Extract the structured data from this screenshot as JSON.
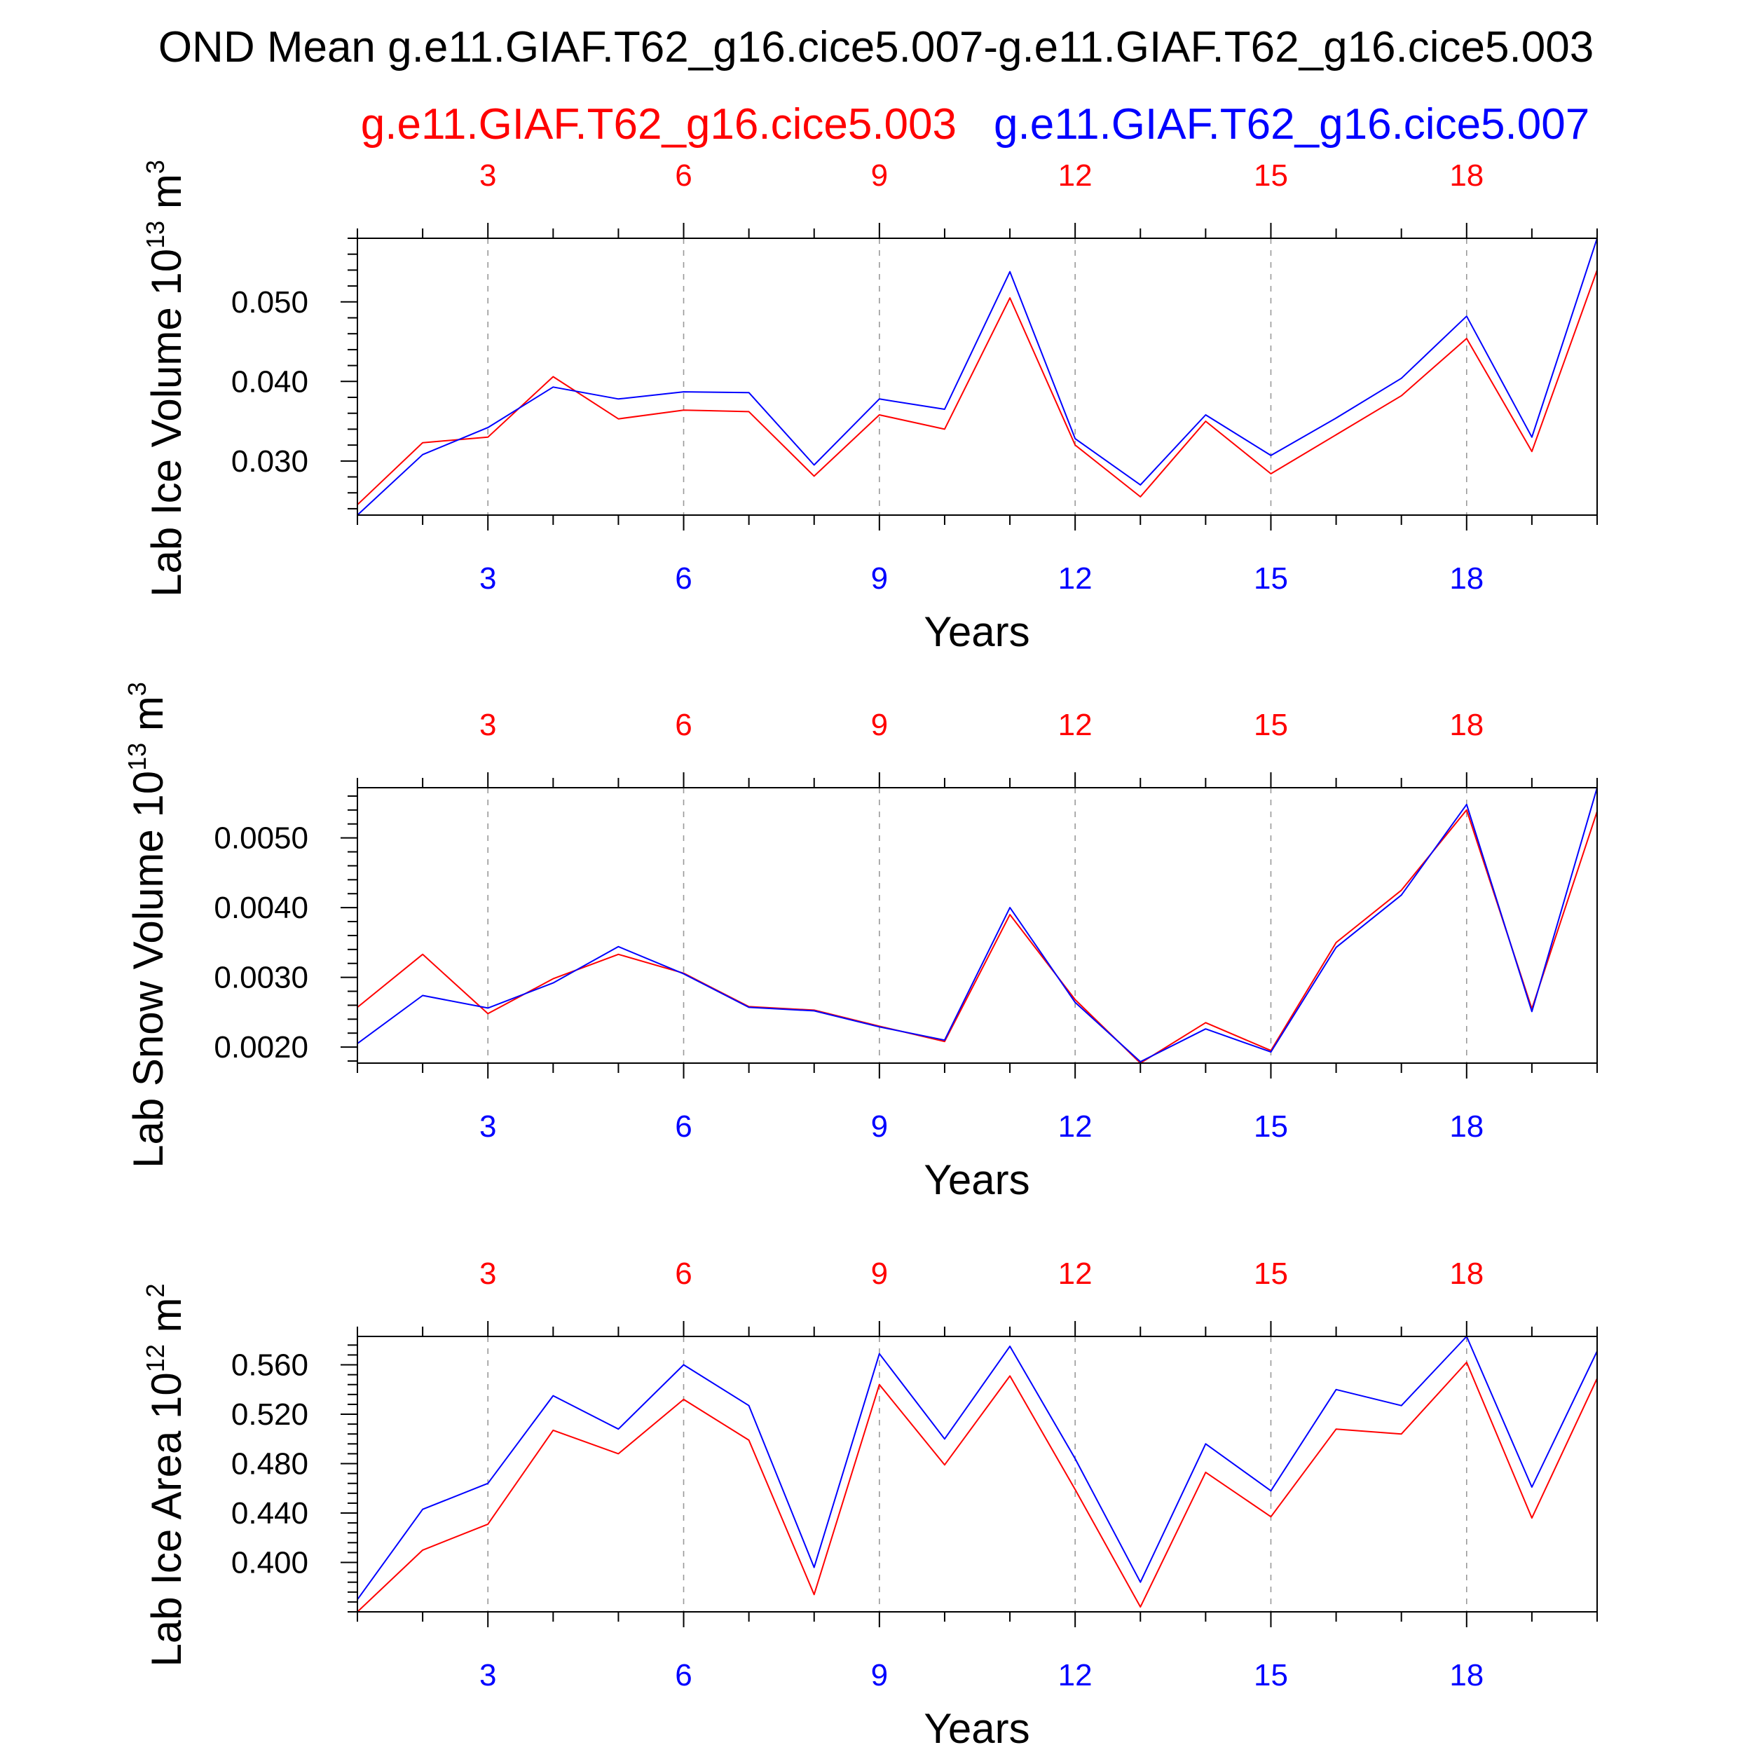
{
  "figure": {
    "title": "OND Mean g.e11.GIAF.T62_g16.cice5.007-g.e11.GIAF.T62_g16.cice5.003",
    "legend": [
      {
        "name": "g.e11.GIAF.T62_g16.cice5.003",
        "color": "#ff0000"
      },
      {
        "name": "g.e11.GIAF.T62_g16.cice5.007",
        "color": "#0000ff"
      }
    ],
    "colors": {
      "red": "#ff0000",
      "blue": "#0000ff",
      "axis": "#000000",
      "grid": "#999999"
    }
  },
  "chart_data": [
    {
      "type": "line",
      "ylabel": "Lab Ice Volume 10",
      "ylabel_exp": "13",
      "ylabel_unit": " m",
      "ylabel_unit_exp": "3",
      "xlabel": "Years",
      "xlim": [
        1,
        20
      ],
      "ylim": [
        0.0232,
        0.058
      ],
      "xticks": [
        3,
        6,
        9,
        12,
        15,
        18
      ],
      "xtick_labels": [
        "3",
        "6",
        "9",
        "12",
        "15",
        "18"
      ],
      "yticks": [
        0.03,
        0.04,
        0.05
      ],
      "ytick_labels": [
        "0.030",
        "0.040",
        "0.050"
      ],
      "x": [
        1,
        2,
        3,
        4,
        5,
        6,
        7,
        8,
        9,
        10,
        11,
        12,
        13,
        14,
        15,
        16,
        17,
        18,
        19,
        20
      ],
      "series": [
        {
          "name": "g.e11.GIAF.T62_g16.cice5.003",
          "color": "#ff0000",
          "values": [
            0.0245,
            0.0323,
            0.033,
            0.0406,
            0.0353,
            0.0364,
            0.0362,
            0.0281,
            0.0358,
            0.034,
            0.0505,
            0.032,
            0.0255,
            0.035,
            0.0284,
            0.0333,
            0.0382,
            0.0454,
            0.0312,
            0.054
          ]
        },
        {
          "name": "g.e11.GIAF.T62_g16.cice5.007",
          "color": "#0000ff",
          "values": [
            0.0232,
            0.0308,
            0.0342,
            0.0393,
            0.0378,
            0.0387,
            0.0386,
            0.0295,
            0.0378,
            0.0365,
            0.0538,
            0.0328,
            0.027,
            0.0358,
            0.0307,
            0.0354,
            0.0404,
            0.0482,
            0.033,
            0.058
          ]
        }
      ]
    },
    {
      "type": "line",
      "ylabel": "Lab Snow Volume 10",
      "ylabel_exp": "13",
      "ylabel_unit": " m",
      "ylabel_unit_exp": "3",
      "xlabel": "Years",
      "xlim": [
        1,
        20
      ],
      "ylim": [
        0.00177,
        0.00572
      ],
      "xticks": [
        3,
        6,
        9,
        12,
        15,
        18
      ],
      "xtick_labels": [
        "3",
        "6",
        "9",
        "12",
        "15",
        "18"
      ],
      "yticks": [
        0.002,
        0.003,
        0.004,
        0.005
      ],
      "ytick_labels": [
        "0.0020",
        "0.0030",
        "0.0040",
        "0.0050"
      ],
      "x": [
        1,
        2,
        3,
        4,
        5,
        6,
        7,
        8,
        9,
        10,
        11,
        12,
        13,
        14,
        15,
        16,
        17,
        18,
        19,
        20
      ],
      "series": [
        {
          "name": "g.e11.GIAF.T62_g16.cice5.003",
          "color": "#ff0000",
          "values": [
            0.00257,
            0.00333,
            0.00248,
            0.00298,
            0.00333,
            0.00306,
            0.00258,
            0.00253,
            0.0023,
            0.00208,
            0.0039,
            0.00268,
            0.00177,
            0.00235,
            0.00195,
            0.0035,
            0.00425,
            0.0054,
            0.00255,
            0.00538
          ]
        },
        {
          "name": "g.e11.GIAF.T62_g16.cice5.007",
          "color": "#0000ff",
          "values": [
            0.00205,
            0.00274,
            0.00256,
            0.00292,
            0.00344,
            0.00305,
            0.00257,
            0.00252,
            0.00229,
            0.0021,
            0.004,
            0.00264,
            0.00179,
            0.00226,
            0.00193,
            0.00343,
            0.00418,
            0.00548,
            0.00251,
            0.00572
          ]
        }
      ]
    },
    {
      "type": "line",
      "ylabel": "Lab Ice Area 10",
      "ylabel_exp": "12",
      "ylabel_unit": " m",
      "ylabel_unit_exp": "2",
      "xlabel": "Years",
      "xlim": [
        1,
        20
      ],
      "ylim": [
        0.36,
        0.583
      ],
      "xticks": [
        3,
        6,
        9,
        12,
        15,
        18
      ],
      "xtick_labels": [
        "3",
        "6",
        "9",
        "12",
        "15",
        "18"
      ],
      "yticks": [
        0.4,
        0.44,
        0.48,
        0.52,
        0.56
      ],
      "ytick_labels": [
        "0.400",
        "0.440",
        "0.480",
        "0.520",
        "0.560"
      ],
      "x": [
        1,
        2,
        3,
        4,
        5,
        6,
        7,
        8,
        9,
        10,
        11,
        12,
        13,
        14,
        15,
        16,
        17,
        18,
        19,
        20
      ],
      "series": [
        {
          "name": "g.e11.GIAF.T62_g16.cice5.003",
          "color": "#ff0000",
          "values": [
            0.36,
            0.41,
            0.431,
            0.507,
            0.488,
            0.532,
            0.499,
            0.374,
            0.544,
            0.479,
            0.551,
            0.459,
            0.364,
            0.473,
            0.437,
            0.508,
            0.504,
            0.562,
            0.436,
            0.549
          ]
        },
        {
          "name": "g.e11.GIAF.T62_g16.cice5.007",
          "color": "#0000ff",
          "values": [
            0.37,
            0.443,
            0.464,
            0.535,
            0.508,
            0.56,
            0.527,
            0.396,
            0.569,
            0.5,
            0.575,
            0.484,
            0.384,
            0.496,
            0.458,
            0.54,
            0.527,
            0.583,
            0.461,
            0.571
          ]
        }
      ]
    }
  ]
}
